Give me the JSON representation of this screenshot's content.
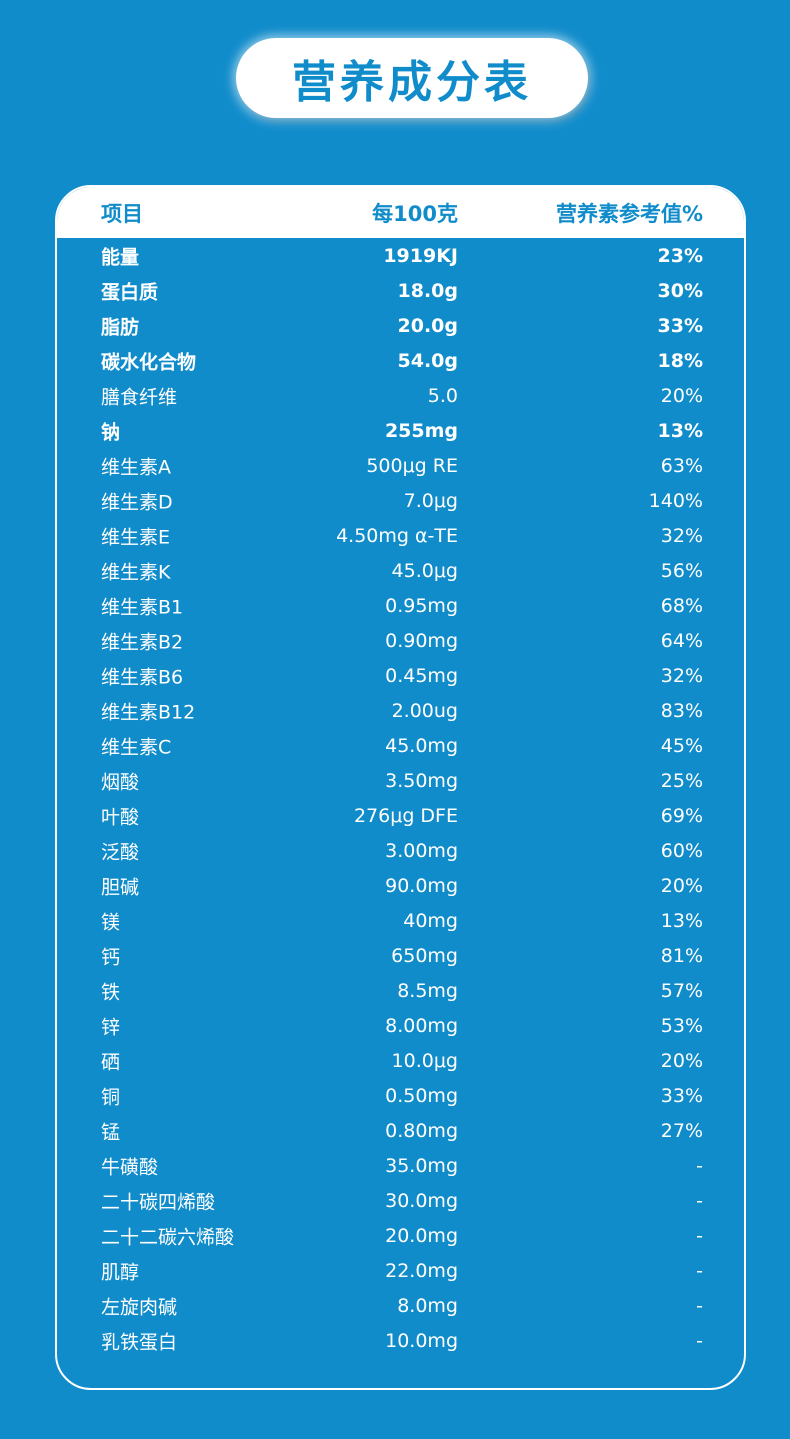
{
  "title": "营养成分表",
  "colors": {
    "background": "#118ccb",
    "header_bg": "#ffffff",
    "text": "#ffffff"
  },
  "table": {
    "headers": [
      "项目",
      "每100克",
      "营养素参考值%"
    ],
    "rows": [
      {
        "name": "能量",
        "value": "1919KJ",
        "nrv": "23%",
        "bold": true
      },
      {
        "name": "蛋白质",
        "value": "18.0g",
        "nrv": "30%",
        "bold": true
      },
      {
        "name": "脂肪",
        "value": "20.0g",
        "nrv": "33%",
        "bold": true
      },
      {
        "name": "碳水化合物",
        "value": "54.0g",
        "nrv": "18%",
        "bold": true
      },
      {
        "name": "膳食纤维",
        "value": "5.0",
        "nrv": "20%",
        "bold": false
      },
      {
        "name": "钠",
        "value": "255mg",
        "nrv": "13%",
        "bold": true
      },
      {
        "name": "维生素A",
        "value": "500μg RE",
        "nrv": "63%",
        "bold": false
      },
      {
        "name": "维生素D",
        "value": "7.0μg",
        "nrv": "140%",
        "bold": false
      },
      {
        "name": "维生素E",
        "value": "4.50mg α-TE",
        "nrv": "32%",
        "bold": false
      },
      {
        "name": "维生素K",
        "value": "45.0μg",
        "nrv": "56%",
        "bold": false
      },
      {
        "name": "维生素B1",
        "value": "0.95mg",
        "nrv": "68%",
        "bold": false
      },
      {
        "name": "维生素B2",
        "value": "0.90mg",
        "nrv": "64%",
        "bold": false
      },
      {
        "name": "维生素B6",
        "value": "0.45mg",
        "nrv": "32%",
        "bold": false
      },
      {
        "name": "维生素B12",
        "value": "2.00ug",
        "nrv": "83%",
        "bold": false
      },
      {
        "name": "维生素C",
        "value": "45.0mg",
        "nrv": "45%",
        "bold": false
      },
      {
        "name": "烟酸",
        "value": "3.50mg",
        "nrv": "25%",
        "bold": false
      },
      {
        "name": "叶酸",
        "value": "276μg DFE",
        "nrv": "69%",
        "bold": false
      },
      {
        "name": "泛酸",
        "value": "3.00mg",
        "nrv": "60%",
        "bold": false
      },
      {
        "name": "胆碱",
        "value": "90.0mg",
        "nrv": "20%",
        "bold": false
      },
      {
        "name": "镁",
        "value": "40mg",
        "nrv": "13%",
        "bold": false
      },
      {
        "name": "钙",
        "value": "650mg",
        "nrv": "81%",
        "bold": false
      },
      {
        "name": "铁",
        "value": "8.5mg",
        "nrv": "57%",
        "bold": false
      },
      {
        "name": "锌",
        "value": "8.00mg",
        "nrv": "53%",
        "bold": false
      },
      {
        "name": "硒",
        "value": "10.0μg",
        "nrv": "20%",
        "bold": false
      },
      {
        "name": "铜",
        "value": "0.50mg",
        "nrv": "33%",
        "bold": false
      },
      {
        "name": "锰",
        "value": "0.80mg",
        "nrv": "27%",
        "bold": false
      },
      {
        "name": "牛磺酸",
        "value": "35.0mg",
        "nrv": "-",
        "bold": false
      },
      {
        "name": "二十碳四烯酸",
        "value": "30.0mg",
        "nrv": "-",
        "bold": false
      },
      {
        "name": "二十二碳六烯酸",
        "value": "20.0mg",
        "nrv": "-",
        "bold": false
      },
      {
        "name": "肌醇",
        "value": "22.0mg",
        "nrv": "-",
        "bold": false
      },
      {
        "name": "左旋肉碱",
        "value": "8.0mg",
        "nrv": "-",
        "bold": false
      },
      {
        "name": "乳铁蛋白",
        "value": "10.0mg",
        "nrv": "-",
        "bold": false
      }
    ]
  }
}
